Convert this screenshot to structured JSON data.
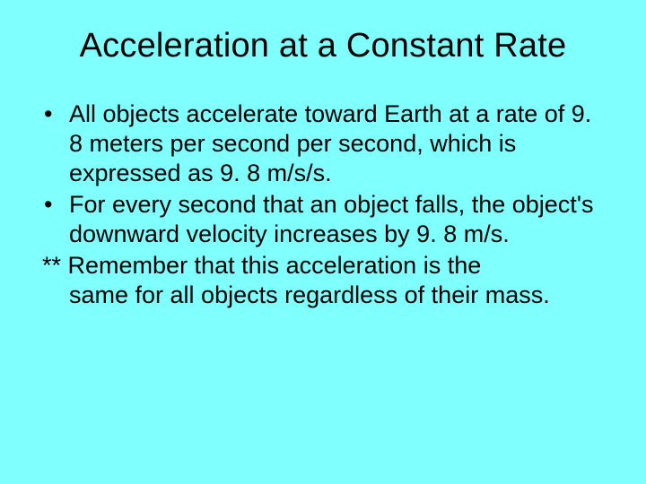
{
  "slide": {
    "background_color": "#80ffff",
    "text_color": "#000000",
    "font_family": "Arial",
    "title": {
      "text": "Acceleration at a Constant Rate",
      "fontsize": 38,
      "weight": "normal",
      "align": "center"
    },
    "bullets": [
      {
        "marker": "•",
        "text": "All objects accelerate toward Earth at a rate of 9. 8 meters per second per second, which is expressed as 9. 8 m/s/s."
      },
      {
        "marker": "•",
        "text": "For every second that an object falls, the object's downward velocity increases by 9. 8 m/s."
      }
    ],
    "note": {
      "prefix": "**",
      "text_line1": " Remember that this acceleration is the",
      "text_line2": "same for all objects regardless of their mass."
    },
    "body_fontsize": 27
  }
}
